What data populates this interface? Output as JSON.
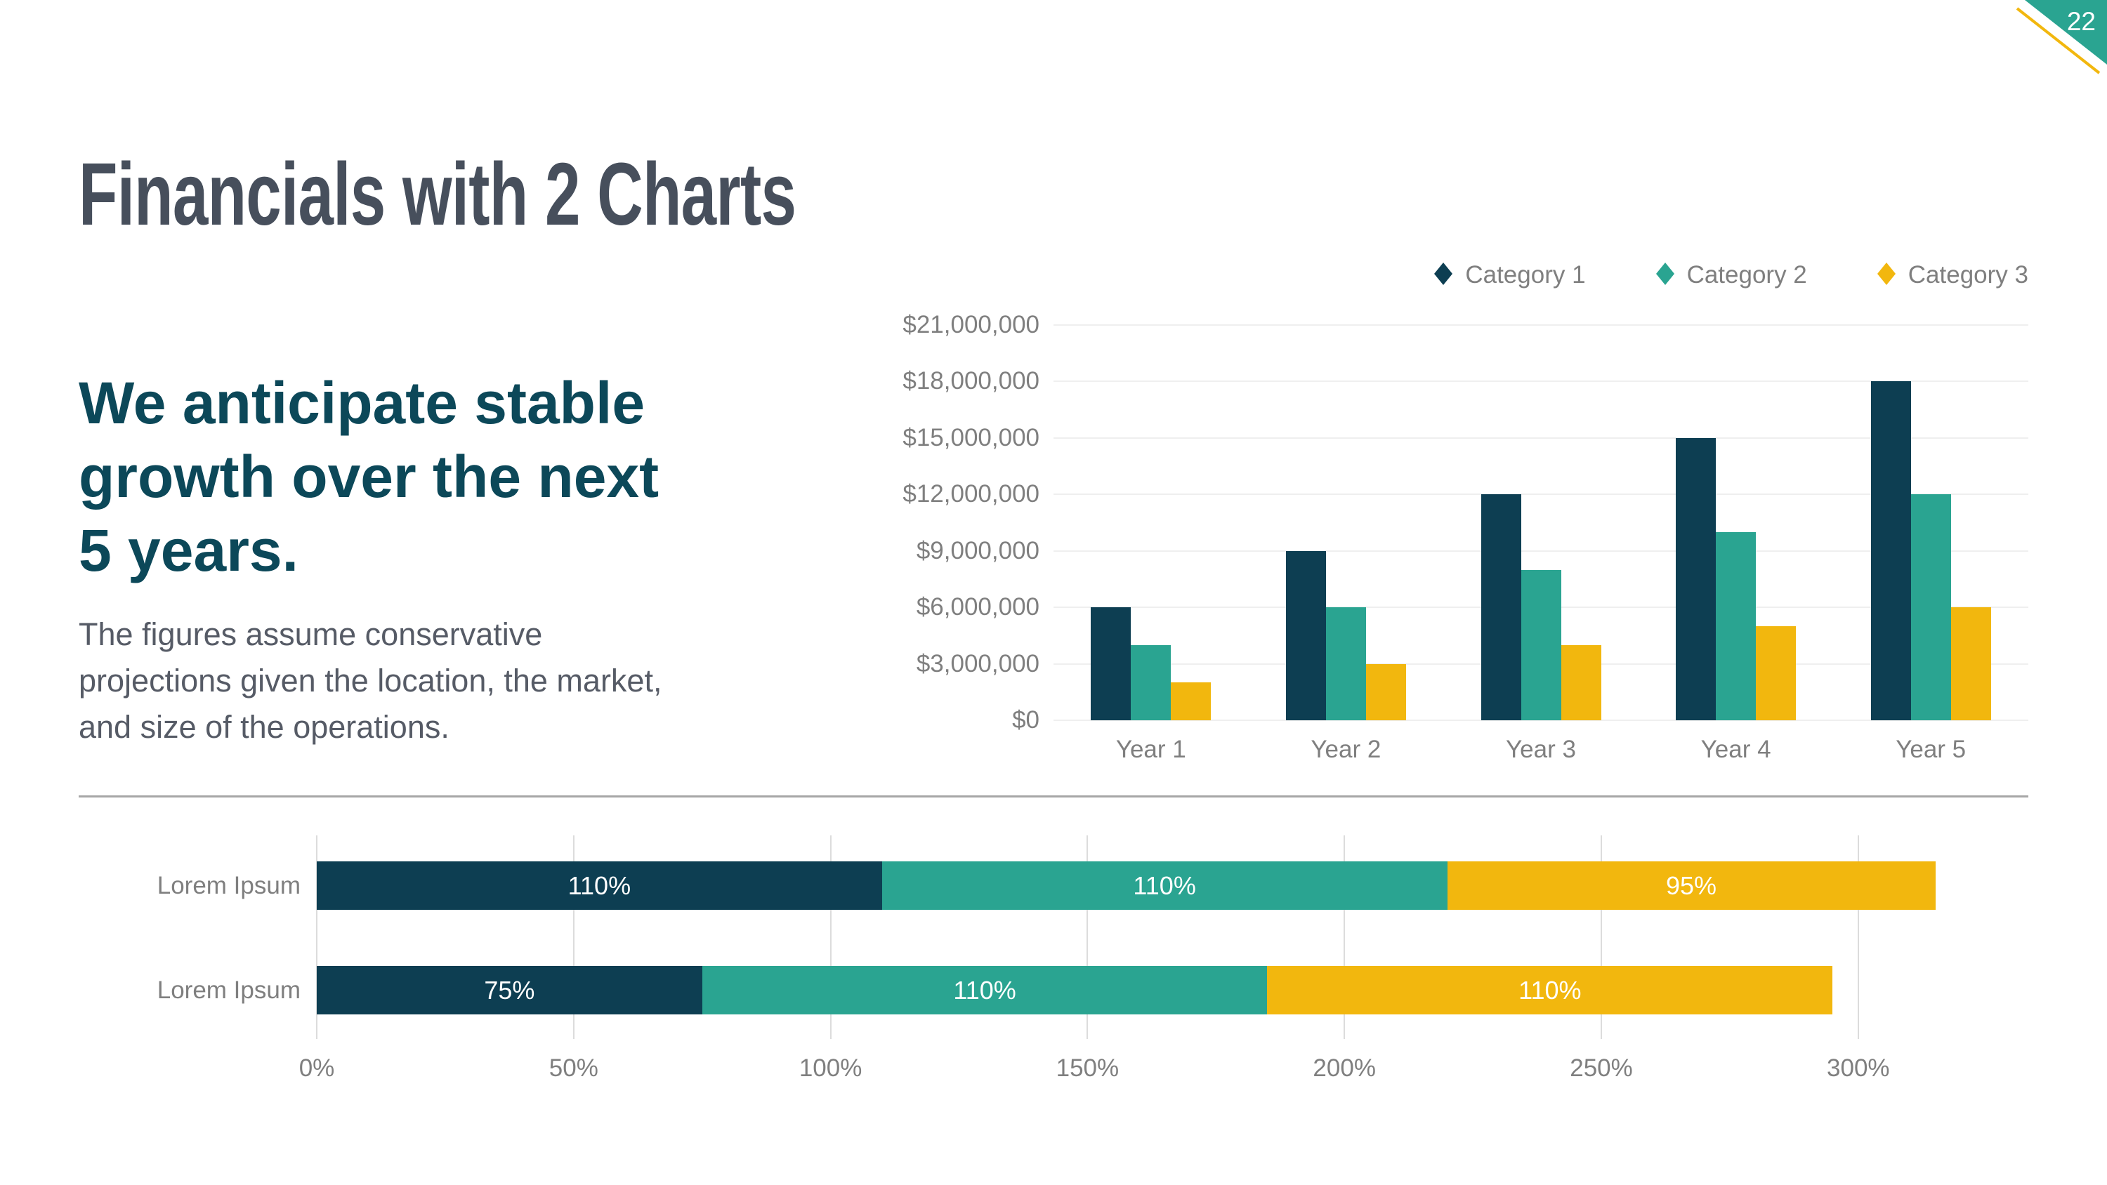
{
  "page_number": "22",
  "title": "Financials with 2 Charts",
  "statement": "We anticipate stable\ngrowth over the next\n5 years.",
  "body_text": "The figures assume conservative\nprojections given the location, the market,\nand size of the operations.",
  "colors": {
    "category1": "#0d3e52",
    "category2": "#2aa491",
    "category3": "#f2b70e",
    "title_text": "#474f5c",
    "statement_text": "#0c4859",
    "body_text": "#565b66",
    "axis_text": "#7f7f7f",
    "grid_top": "#efefef",
    "grid_bottom": "#dcdcdc",
    "divider": "#a6a6a6",
    "segment_label_text": "#ffffff",
    "corner_triangle": "#2aa491",
    "corner_line": "#f2b70e",
    "page_number_text": "#ffffff"
  },
  "chart_data": [
    {
      "type": "bar",
      "title": "",
      "categories": [
        "Year 1",
        "Year 2",
        "Year 3",
        "Year 4",
        "Year 5"
      ],
      "series": [
        {
          "name": "Category 1",
          "color_key": "category1",
          "values": [
            6000000,
            9000000,
            12000000,
            15000000,
            18000000
          ]
        },
        {
          "name": "Category 2",
          "color_key": "category2",
          "values": [
            4000000,
            6000000,
            8000000,
            10000000,
            12000000
          ]
        },
        {
          "name": "Category 3",
          "color_key": "category3",
          "values": [
            2000000,
            3000000,
            4000000,
            5000000,
            6000000
          ]
        }
      ],
      "ylim": [
        0,
        21000000
      ],
      "y_ticks": [
        "$21,000,000",
        "$18,000,000",
        "$15,000,000",
        "$12,000,000",
        "$9,000,000",
        "$6,000,000",
        "$3,000,000",
        "$0"
      ],
      "grid": true,
      "legend_position": "top-right"
    },
    {
      "type": "stacked-bar-horizontal",
      "title": "",
      "xlim": [
        0,
        300
      ],
      "x_ticks": [
        "0%",
        "50%",
        "100%",
        "150%",
        "200%",
        "250%",
        "300%"
      ],
      "grid": true,
      "rows": [
        {
          "label": "Lorem Ipsum",
          "segments": [
            {
              "series": "Category 1",
              "color_key": "category1",
              "value": 110,
              "label": "110%"
            },
            {
              "series": "Category 2",
              "color_key": "category2",
              "value": 110,
              "label": "110%"
            },
            {
              "series": "Category 3",
              "color_key": "category3",
              "value": 95,
              "label": "95%"
            }
          ]
        },
        {
          "label": "Lorem Ipsum",
          "segments": [
            {
              "series": "Category 1",
              "color_key": "category1",
              "value": 75,
              "label": "75%"
            },
            {
              "series": "Category 2",
              "color_key": "category2",
              "value": 110,
              "label": "110%"
            },
            {
              "series": "Category 3",
              "color_key": "category3",
              "value": 110,
              "label": "110%"
            }
          ]
        }
      ]
    }
  ]
}
